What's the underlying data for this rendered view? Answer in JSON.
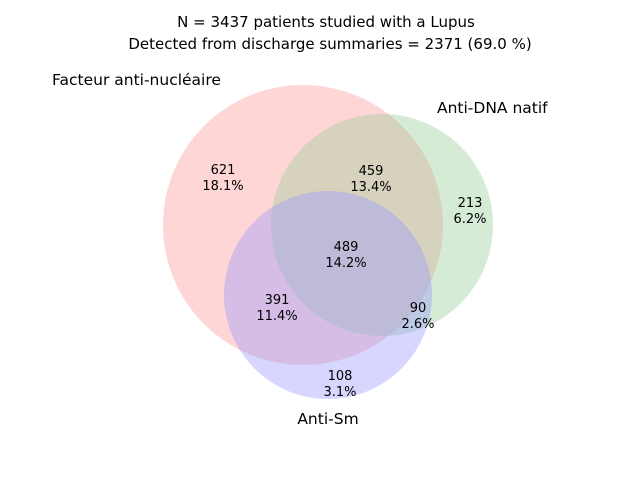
{
  "title": {
    "line1": "N = 3437 patients studied with a Lupus",
    "line2": "Detected from discharge summaries = 2371 (69.0 %)"
  },
  "sets": [
    {
      "id": "A",
      "label": "Facteur anti-nucléaire",
      "color": "#ff9999"
    },
    {
      "id": "B",
      "label": "Anti-DNA natif",
      "color": "#99cc99"
    },
    {
      "id": "C",
      "label": "Anti-Sm",
      "color": "#9999ff"
    }
  ],
  "regions": [
    {
      "id": "A_only",
      "count": "621",
      "percent": "18.1%"
    },
    {
      "id": "AB",
      "count": "459",
      "percent": "13.4%"
    },
    {
      "id": "B_only",
      "count": "213",
      "percent": "6.2%"
    },
    {
      "id": "ABC",
      "count": "489",
      "percent": "14.2%"
    },
    {
      "id": "AC",
      "count": "391",
      "percent": "11.4%"
    },
    {
      "id": "BC",
      "count": "90",
      "percent": "2.6%"
    },
    {
      "id": "C_only",
      "count": "108",
      "percent": "3.1%"
    }
  ]
}
